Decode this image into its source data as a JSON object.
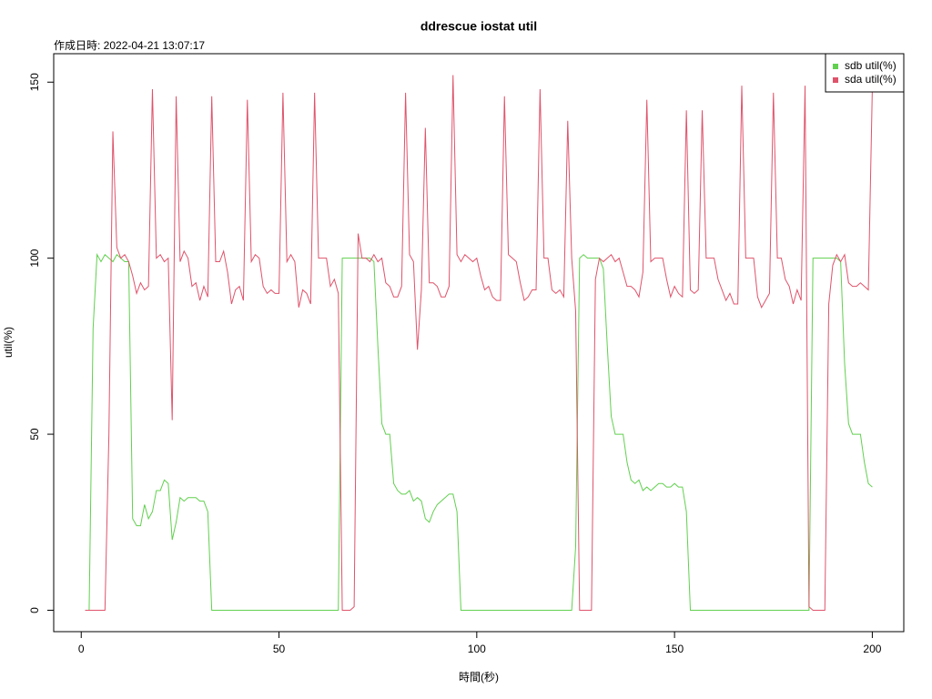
{
  "chart_data": {
    "type": "line",
    "title": "ddrescue iostat util",
    "subtitle": "作成日時: 2022-04-21 13:07:17",
    "x_label": "時間(秒)",
    "y_label": "util(%)",
    "x": [
      1,
      2,
      3,
      4,
      5,
      6,
      7,
      8,
      9,
      10,
      11,
      12,
      13,
      14,
      15,
      16,
      17,
      18,
      19,
      20,
      21,
      22,
      23,
      24,
      25,
      26,
      27,
      28,
      29,
      30,
      31,
      32,
      33,
      34,
      35,
      36,
      37,
      38,
      39,
      40,
      41,
      42,
      43,
      44,
      45,
      46,
      47,
      48,
      49,
      50,
      51,
      52,
      53,
      54,
      55,
      56,
      57,
      58,
      59,
      60,
      61,
      62,
      63,
      64,
      65,
      66,
      67,
      68,
      69,
      70,
      71,
      72,
      73,
      74,
      75,
      76,
      77,
      78,
      79,
      80,
      81,
      82,
      83,
      84,
      85,
      86,
      87,
      88,
      89,
      90,
      91,
      92,
      93,
      94,
      95,
      96,
      97,
      98,
      99,
      100,
      101,
      102,
      103,
      104,
      105,
      106,
      107,
      108,
      109,
      110,
      111,
      112,
      113,
      114,
      115,
      116,
      117,
      118,
      119,
      120,
      121,
      122,
      123,
      124,
      125,
      126,
      127,
      128,
      129,
      130,
      131,
      132,
      133,
      134,
      135,
      136,
      137,
      138,
      139,
      140,
      141,
      142,
      143,
      144,
      145,
      146,
      147,
      148,
      149,
      150,
      151,
      152,
      153,
      154,
      155,
      156,
      157,
      158,
      159,
      160,
      161,
      162,
      163,
      164,
      165,
      166,
      167,
      168,
      169,
      170,
      171,
      172,
      173,
      174,
      175,
      176,
      177,
      178,
      179,
      180,
      181,
      182,
      183,
      184,
      185,
      186,
      187,
      188,
      189,
      190,
      191,
      192,
      193,
      194,
      195,
      196,
      197,
      198,
      199,
      200
    ],
    "series": [
      {
        "name": "sdb util(%)",
        "color": "#61D04F",
        "values": [
          0,
          0,
          80,
          101,
          99,
          101,
          100,
          99,
          101,
          100,
          99,
          99,
          26,
          24,
          24,
          30,
          26,
          28,
          34,
          34,
          37,
          36,
          20,
          25,
          32,
          31,
          32,
          32,
          32,
          31,
          31,
          28,
          0,
          0,
          0,
          0,
          0,
          0,
          0,
          0,
          0,
          0,
          0,
          0,
          0,
          0,
          0,
          0,
          0,
          0,
          0,
          0,
          0,
          0,
          0,
          0,
          0,
          0,
          0,
          0,
          0,
          0,
          0,
          0,
          0,
          100,
          100,
          100,
          100,
          100,
          100,
          100,
          100,
          99,
          75,
          53,
          50,
          50,
          36,
          34,
          33,
          33,
          34,
          31,
          32,
          31,
          26,
          25,
          28,
          30,
          31,
          32,
          33,
          33,
          28,
          0,
          0,
          0,
          0,
          0,
          0,
          0,
          0,
          0,
          0,
          0,
          0,
          0,
          0,
          0,
          0,
          0,
          0,
          0,
          0,
          0,
          0,
          0,
          0,
          0,
          0,
          0,
          0,
          0,
          18,
          100,
          101,
          100,
          100,
          100,
          100,
          97,
          75,
          55,
          50,
          50,
          50,
          42,
          37,
          36,
          37,
          34,
          35,
          34,
          35,
          36,
          36,
          35,
          35,
          36,
          35,
          35,
          28,
          0,
          0,
          0,
          0,
          0,
          0,
          0,
          0,
          0,
          0,
          0,
          0,
          0,
          0,
          0,
          0,
          0,
          0,
          0,
          0,
          0,
          0,
          0,
          0,
          0,
          0,
          0,
          0,
          0,
          0,
          0,
          100,
          100,
          100,
          100,
          100,
          100,
          100,
          99,
          70,
          53,
          50,
          50,
          50,
          42,
          36,
          35
        ]
      },
      {
        "name": "sda util(%)",
        "color": "#DF536B",
        "values": [
          0,
          0,
          0,
          0,
          0,
          0,
          50,
          136,
          103,
          100,
          101,
          99,
          95,
          90,
          93,
          91,
          92,
          148,
          100,
          101,
          99,
          100,
          54,
          146,
          99,
          102,
          100,
          92,
          93,
          88,
          92,
          89,
          146,
          99,
          99,
          102,
          96,
          87,
          91,
          92,
          88,
          145,
          99,
          101,
          100,
          92,
          90,
          91,
          90,
          90,
          147,
          99,
          101,
          99,
          86,
          91,
          90,
          87,
          147,
          100,
          100,
          100,
          92,
          94,
          90,
          0,
          0,
          0,
          1,
          107,
          100,
          100,
          99,
          101,
          99,
          100,
          93,
          92,
          89,
          89,
          92,
          147,
          101,
          99,
          74,
          91,
          137,
          93,
          93,
          92,
          89,
          89,
          92,
          152,
          101,
          99,
          101,
          100,
          99,
          100,
          95,
          91,
          92,
          89,
          88,
          88,
          146,
          101,
          100,
          99,
          93,
          88,
          89,
          91,
          91,
          148,
          100,
          100,
          91,
          90,
          91,
          89,
          139,
          100,
          85,
          0,
          0,
          0,
          0,
          94,
          100,
          99,
          100,
          101,
          99,
          100,
          96,
          92,
          92,
          91,
          89,
          96,
          145,
          99,
          100,
          100,
          100,
          94,
          89,
          92,
          90,
          89,
          142,
          91,
          90,
          91,
          142,
          100,
          100,
          100,
          94,
          91,
          88,
          90,
          87,
          87,
          149,
          100,
          100,
          100,
          89,
          86,
          88,
          90,
          147,
          100,
          100,
          94,
          92,
          87,
          91,
          88,
          149,
          1,
          0,
          0,
          0,
          0,
          87,
          98,
          101,
          99,
          101,
          93,
          92,
          92,
          93,
          92,
          91,
          148
        ]
      }
    ],
    "xlim": [
      -6.96,
      207.96
    ],
    "ylim": [
      -6.08,
      158.08
    ],
    "xticks": [
      0,
      50,
      100,
      150,
      200
    ],
    "yticks": [
      0,
      50,
      100,
      150
    ],
    "legend": "topright"
  }
}
